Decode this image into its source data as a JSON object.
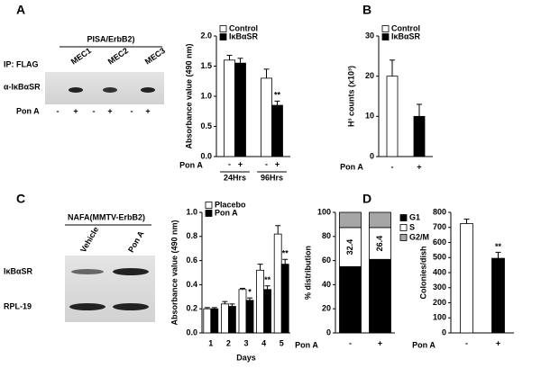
{
  "panel_labels": [
    "A",
    "B",
    "C",
    "D"
  ],
  "blot_a": {
    "group": "PISA/ErbB2)",
    "lanes": [
      "MEC1",
      "MEC2",
      "MEC3"
    ],
    "ip": "IP: FLAG",
    "row": "α-IκBαSR",
    "treatment": "Pon A",
    "signs": [
      "-",
      "+"
    ]
  },
  "blot_c": {
    "group": "NAFA(MMTV-ErbB2)",
    "lanes": [
      "Vehicle",
      "Pon A"
    ],
    "rows": [
      "IκBαSR",
      "RPL-19"
    ]
  },
  "chart_data": [
    {
      "type": "bar",
      "categories": [
        "24Hrs",
        "96Hrs"
      ],
      "x_sublabels": [
        "-",
        "+"
      ],
      "x_label": "Pon A",
      "y_label": "Absorbance value (490 nm)",
      "ylim": [
        0,
        2
      ],
      "yticks": [
        {
          "value": 0,
          "label": "0.0"
        },
        0.5,
        {
          "value": 1,
          "label": "1.0"
        },
        1.5,
        {
          "value": 2,
          "label": "2.0"
        }
      ],
      "legend": "upper left",
      "series": [
        {
          "name": "Control",
          "color": "#ffffff",
          "values": [
            1.6,
            1.3
          ],
          "errors": [
            0.08,
            0.15
          ],
          "marks": [
            null,
            null
          ]
        },
        {
          "name": "IκBαSR",
          "color": "#000000",
          "values": [
            1.55,
            0.85
          ],
          "errors": [
            0.08,
            0.07
          ],
          "marks": [
            null,
            "**"
          ]
        }
      ]
    },
    {
      "type": "bar",
      "categories": [
        "-",
        "+"
      ],
      "x_label": "Pon A",
      "y_label": "H³ counts (x10³)",
      "ylim": [
        0,
        30
      ],
      "yticks": [
        0,
        10,
        20,
        30
      ],
      "legend": "upper left",
      "series": [
        {
          "name": "Control",
          "color": "#ffffff",
          "values": [
            20,
            null
          ],
          "errors": [
            4,
            null
          ],
          "marks": [
            null,
            null
          ]
        },
        {
          "name": "IκBαSR",
          "color": "#000000",
          "values": [
            null,
            10
          ],
          "errors": [
            null,
            3
          ],
          "marks": [
            null,
            null
          ]
        }
      ]
    },
    {
      "type": "bar",
      "categories": [
        "1",
        "2",
        "3",
        "4",
        "5"
      ],
      "x_label": "Days",
      "y_label": "Absorbance value (490 nm)",
      "ylim": [
        0,
        1
      ],
      "yticks": [
        {
          "value": 0,
          "label": "0.0"
        },
        0.2,
        0.4,
        0.6,
        0.8,
        {
          "value": 1,
          "label": "1.0"
        }
      ],
      "legend": "upper left",
      "series": [
        {
          "name": "Placebo",
          "color": "#ffffff",
          "values": [
            0.2,
            0.24,
            0.36,
            0.52,
            0.82
          ],
          "errors": [
            0.01,
            0.02,
            0.01,
            0.05,
            0.07
          ],
          "marks": [
            null,
            null,
            null,
            null,
            null
          ]
        },
        {
          "name": "Pon A",
          "color": "#000000",
          "values": [
            0.2,
            0.22,
            0.27,
            0.36,
            0.57
          ],
          "errors": [
            0.01,
            0.02,
            0.02,
            0.03,
            0.04
          ],
          "marks": [
            null,
            null,
            "*",
            "**",
            "**"
          ]
        }
      ]
    },
    {
      "type": "stacked_bar",
      "categories": [
        "-",
        "+"
      ],
      "x_label": "Pon A",
      "y_label": "% distribution",
      "ylim": [
        0,
        100
      ],
      "yticks": [
        0,
        20,
        40,
        60,
        80,
        100
      ],
      "legend": "right",
      "series": [
        {
          "name": "G1",
          "color": "#000000",
          "values": [
            55,
            61
          ]
        },
        {
          "name": "S",
          "color": "#ffffff",
          "values": [
            32.4,
            26.4
          ],
          "data_labels": true
        },
        {
          "name": "G2/M",
          "color": "#a6a6a6",
          "values": [
            12.6,
            12.6
          ]
        }
      ]
    },
    {
      "type": "bar",
      "categories": [
        "-",
        "+"
      ],
      "x_label": "Pon A",
      "y_label": "Colonies/dish",
      "ylim": [
        0,
        800
      ],
      "yticks": [
        0,
        100,
        200,
        300,
        400,
        500,
        600,
        700,
        800
      ],
      "values": [
        725,
        495
      ],
      "colors": [
        "#ffffff",
        "#000000"
      ],
      "errors": [
        30,
        40
      ],
      "marks": [
        null,
        "**"
      ]
    }
  ]
}
